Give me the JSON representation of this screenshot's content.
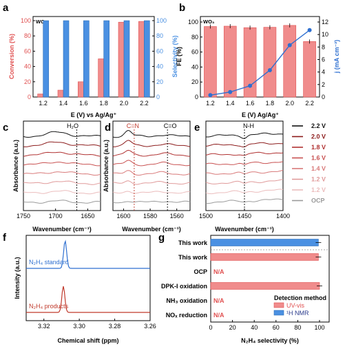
{
  "panel_letters": {
    "a": "a",
    "b": "b",
    "c": "c",
    "d": "d",
    "e": "e",
    "f": "f",
    "g": "g"
  },
  "colors": {
    "red": "#e05050",
    "red_bar": "#f08c8c",
    "blue": "#4a90e2",
    "blue_line": "#2e6fd0",
    "navy": "#2a3a8c"
  },
  "chart_data": [
    {
      "id": "a",
      "type": "bar",
      "annotation": "WO₃",
      "categories": [
        "1.2",
        "1.4",
        "1.6",
        "1.8",
        "2.0",
        "2.2"
      ],
      "series": [
        {
          "name": "Conversion",
          "values": [
            4,
            9,
            20,
            50,
            98,
            99
          ]
        },
        {
          "name": "Selectivity",
          "values": [
            100,
            100,
            100,
            100,
            100,
            100
          ]
        }
      ],
      "xlabel": "E (V) vs Ag/Ag⁺",
      "ylabel": "Conversion (%)",
      "y2label": "Selectivity (%)",
      "ylim": [
        0,
        100
      ],
      "yticks": [
        "0",
        "20",
        "40",
        "60",
        "80",
        "100"
      ]
    },
    {
      "id": "b",
      "type": "bar",
      "annotation": "WO₃",
      "categories": [
        "1.2",
        "1.4",
        "1.6",
        "1.8",
        "2.0",
        "2.2"
      ],
      "series": [
        {
          "name": "FE",
          "values": [
            94,
            94.5,
            92.5,
            93,
            95.5,
            74
          ]
        },
        {
          "name": "j",
          "values": [
            0.3,
            0.8,
            1.8,
            4.3,
            8.3,
            10.7
          ]
        }
      ],
      "xlabel": "E (V) Ag/Ag⁺",
      "ylabel": "FE (%)",
      "y2label": "j (mA cm⁻²)",
      "ylim": [
        0,
        100
      ],
      "y2lim": [
        0,
        12
      ],
      "yticks": [
        "0",
        "20",
        "40",
        "60",
        "80",
        "100"
      ],
      "y2ticks": [
        "0",
        "2",
        "4",
        "6",
        "8",
        "10",
        "12"
      ]
    },
    {
      "id": "c",
      "type": "line",
      "xlabel": "Wavenumber (cm⁻¹)",
      "ylabel": "Absorbance (a.u.)",
      "xticks": [
        "1750",
        "1700",
        "1650"
      ],
      "xlim": [
        1750,
        1630
      ],
      "marker": {
        "label": "H₂O",
        "x": 1667
      }
    },
    {
      "id": "d",
      "type": "line",
      "xlabel": "Wavenumber (cm⁻¹)",
      "ylabel": "Absorbance (a.u.)",
      "xticks": [
        "1600",
        "1580",
        "1560"
      ],
      "xlim": [
        1608,
        1550
      ],
      "markers": [
        {
          "label": "C=N",
          "x": 1592
        },
        {
          "label": "C=O",
          "x": 1567
        }
      ]
    },
    {
      "id": "e",
      "type": "line",
      "xlabel": "Wavenumber (cm⁻¹)",
      "xticks": [
        "1500",
        "1450",
        "1400"
      ],
      "xlim": [
        1500,
        1400
      ],
      "marker": {
        "label": "N-H",
        "x": 1450
      }
    },
    {
      "id": "f",
      "type": "line",
      "xlabel": "Chemical shift (ppm)",
      "ylabel": "Intensity (a.u.)",
      "xticks": [
        "3.32",
        "3.30",
        "3.28",
        "3.26"
      ],
      "xlim": [
        3.33,
        3.26
      ],
      "traces": [
        {
          "name": "N₂H₄ standard",
          "peak": 3.308
        },
        {
          "name": "N₂H₄ products",
          "peak": 3.309
        }
      ]
    },
    {
      "id": "g",
      "type": "bar",
      "categories": [
        "This work",
        "This work",
        "OCP",
        "DPK-I oxidation",
        "NH₃ oxidation",
        "NOₓ reduction"
      ],
      "series": [
        {
          "name": "UV-vis",
          "values": [
            null,
            99,
            0,
            100,
            0,
            0
          ]
        },
        {
          "name": "¹H NMR",
          "values": [
            99,
            null,
            null,
            null,
            null,
            null
          ]
        }
      ],
      "bar_labels": [
        "",
        "",
        "N/A",
        "",
        "N/A",
        "N/A"
      ],
      "xlabel": "N₂H₄ selectivity (%)",
      "xlim": [
        0,
        100
      ],
      "xticks": [
        "0",
        "20",
        "40",
        "60",
        "80",
        "100"
      ],
      "legend_title": "Detection method",
      "legend_position": "bottom-right"
    }
  ],
  "legend_potentials": [
    "2.2 V",
    "2.0 V",
    "1.8 V",
    "1.6 V",
    "1.4 V",
    "1.2 V",
    "1.2 V",
    "OCP"
  ],
  "legend_colors": [
    "#111111",
    "#8b1a1a",
    "#b03030",
    "#c85050",
    "#d87878",
    "#e09a9a",
    "#ebbcbc",
    "#9a9a9a"
  ]
}
